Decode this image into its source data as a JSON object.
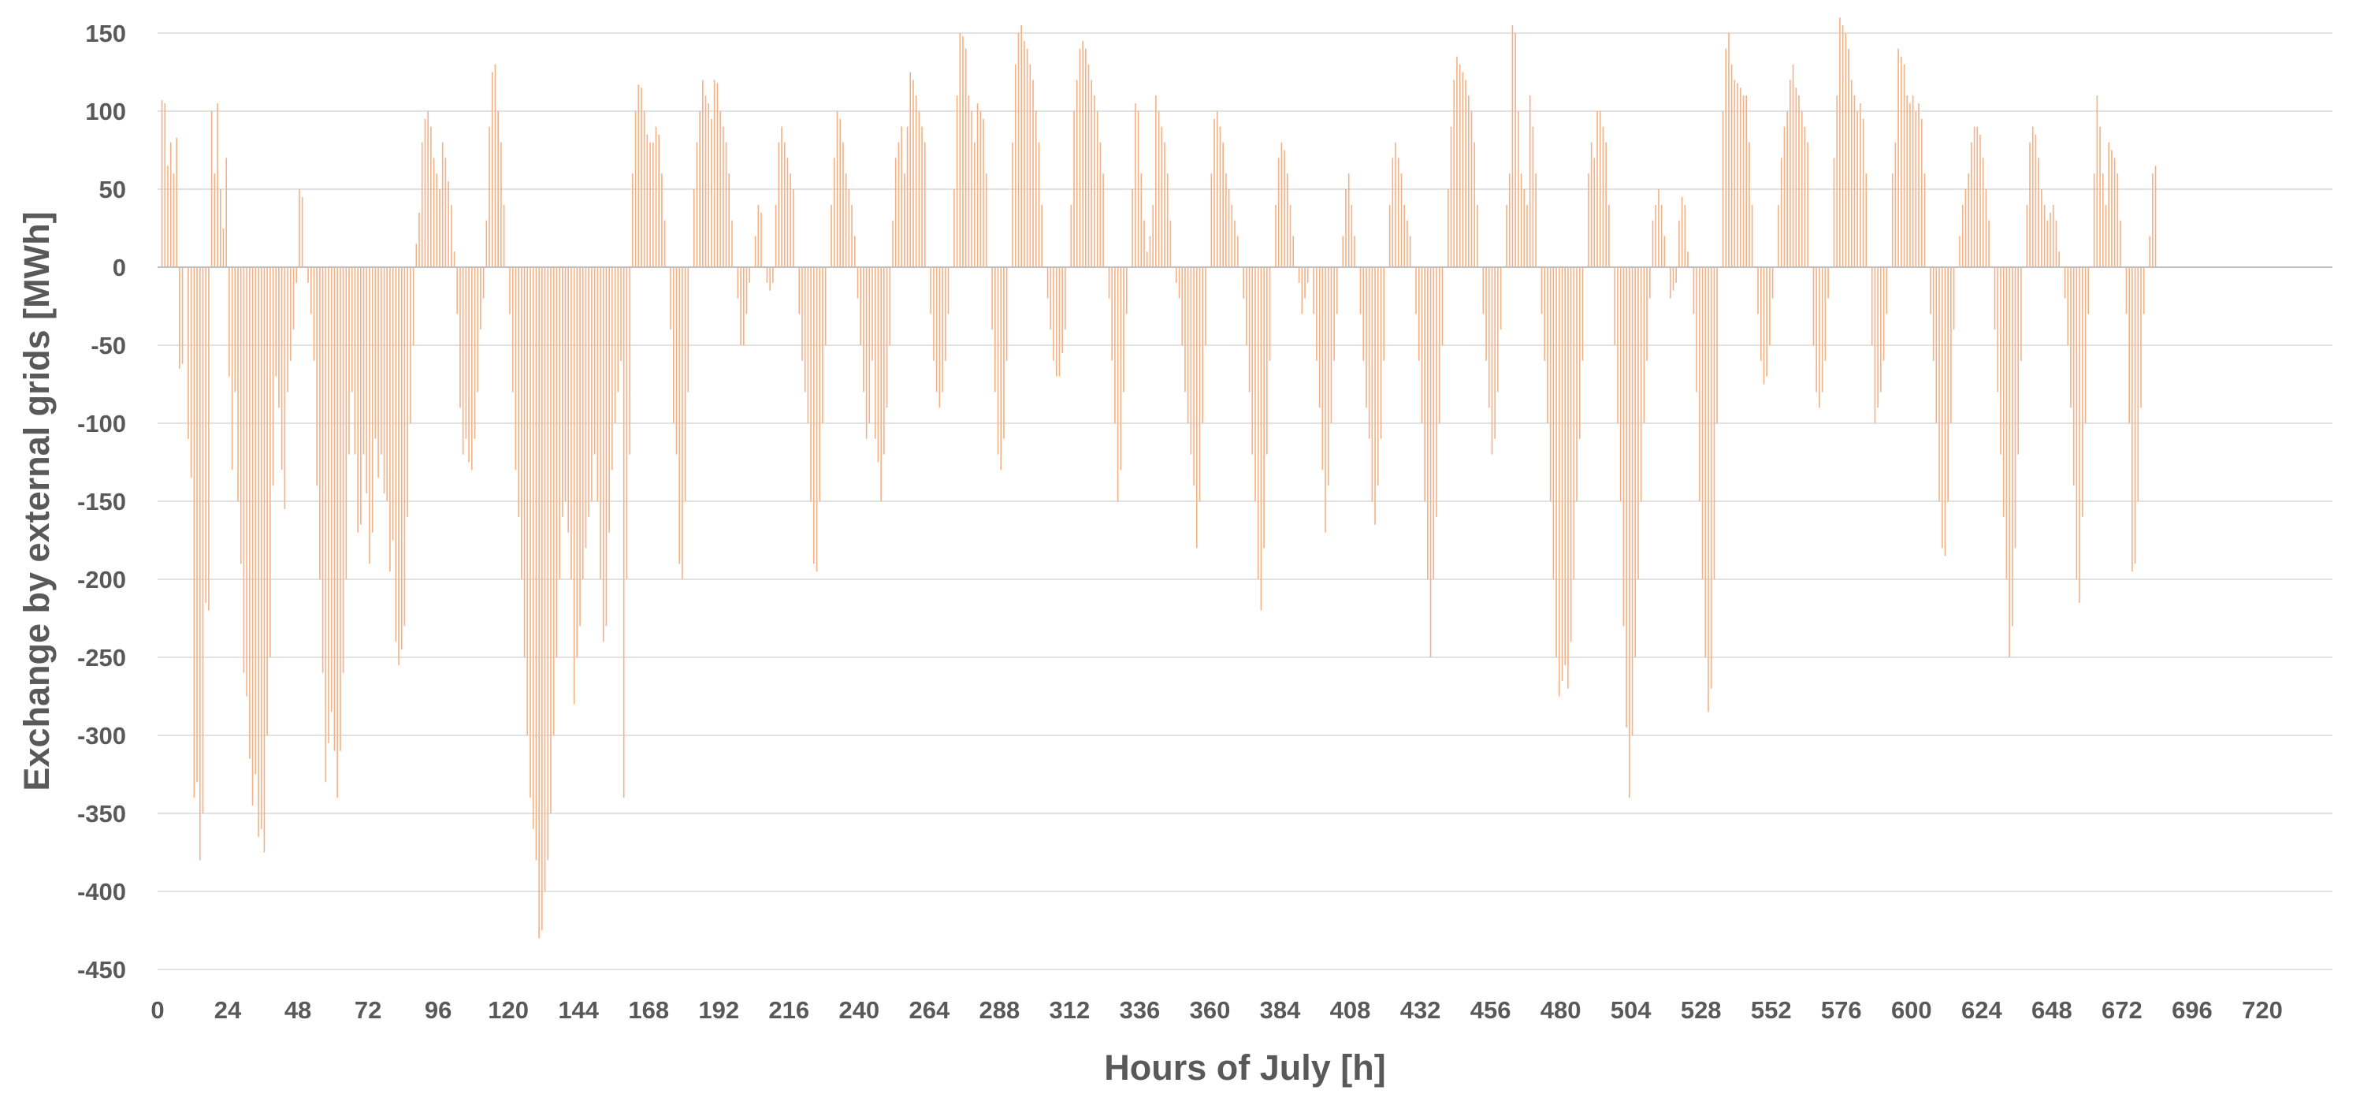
{
  "chart_data": {
    "type": "bar",
    "title": "",
    "xlabel": "Hours of July [h]",
    "ylabel": "Exchange by external grids [MWh]",
    "ylim": [
      -450,
      150
    ],
    "xlim": [
      0,
      744
    ],
    "grid": "horizontal",
    "legend": "none",
    "bar_color": "#f4b183",
    "zero_line_color": "#bfbfbf",
    "grid_color": "#d9d9d9",
    "yticks": [
      150,
      100,
      50,
      0,
      -50,
      -100,
      -150,
      -200,
      -250,
      -300,
      -350,
      -400,
      -450
    ],
    "xticks": [
      0,
      24,
      48,
      72,
      96,
      120,
      144,
      168,
      192,
      216,
      240,
      264,
      288,
      312,
      336,
      360,
      384,
      408,
      432,
      456,
      480,
      504,
      528,
      552,
      576,
      600,
      624,
      648,
      672,
      696,
      720
    ],
    "series": [
      {
        "values": [
          0,
          107,
          105,
          65,
          80,
          60,
          83,
          -65,
          -62,
          0,
          -110,
          -135,
          -340,
          -330,
          -380,
          -350,
          -215,
          -220,
          100,
          60,
          105,
          50,
          25,
          70,
          -70,
          -130,
          -80,
          -150,
          -190,
          -260,
          -275,
          -315,
          -345,
          -325,
          -365,
          -360,
          -375,
          -300,
          -250,
          -140,
          -70,
          -90,
          -130,
          -155,
          -80,
          -60,
          -40,
          -10,
          50,
          45,
          0,
          -10,
          -30,
          -60,
          -140,
          -200,
          -260,
          -330,
          -305,
          -285,
          -310,
          -340,
          -310,
          -260,
          -200,
          -120,
          -80,
          -120,
          -170,
          -165,
          -120,
          -145,
          -190,
          -170,
          -110,
          -135,
          -120,
          -145,
          -150,
          -195,
          -175,
          -240,
          -255,
          -245,
          -230,
          -160,
          -100,
          -50,
          15,
          35,
          80,
          95,
          100,
          90,
          70,
          60,
          50,
          80,
          70,
          55,
          40,
          10,
          -30,
          -90,
          -120,
          -110,
          -125,
          -130,
          -110,
          -80,
          -40,
          -20,
          30,
          90,
          125,
          130,
          100,
          80,
          40,
          0,
          -30,
          -80,
          -130,
          -160,
          -200,
          -250,
          -300,
          -340,
          -360,
          -380,
          -430,
          -425,
          -400,
          -380,
          -350,
          -300,
          -250,
          -200,
          -160,
          -150,
          -170,
          -200,
          -280,
          -250,
          -230,
          -200,
          -180,
          -160,
          -150,
          -120,
          -150,
          -200,
          -240,
          -230,
          -170,
          -130,
          -100,
          -80,
          -60,
          -340,
          -200,
          -120,
          60,
          100,
          117,
          115,
          100,
          85,
          80,
          80,
          90,
          85,
          60,
          30,
          0,
          -40,
          -100,
          -120,
          -190,
          -200,
          -150,
          -80,
          0,
          50,
          80,
          100,
          120,
          110,
          105,
          95,
          120,
          118,
          100,
          90,
          80,
          60,
          30,
          0,
          -20,
          -50,
          -50,
          -30,
          -10,
          0,
          20,
          40,
          35,
          0,
          -10,
          -15,
          -10,
          40,
          80,
          90,
          80,
          70,
          60,
          50,
          0,
          -30,
          -60,
          -80,
          -100,
          -150,
          -190,
          -195,
          -150,
          -100,
          -50,
          0,
          40,
          70,
          100,
          95,
          80,
          60,
          50,
          40,
          20,
          -20,
          -50,
          -80,
          -110,
          -100,
          -60,
          -110,
          -125,
          -150,
          -120,
          -90,
          -50,
          30,
          70,
          80,
          90,
          60,
          90,
          125,
          120,
          110,
          100,
          90,
          80,
          0,
          -30,
          -60,
          -80,
          -90,
          -80,
          -60,
          -30,
          0,
          50,
          110,
          150,
          148,
          140,
          110,
          100,
          80,
          105,
          100,
          95,
          60,
          0,
          -40,
          -80,
          -120,
          -130,
          -110,
          -60,
          0,
          80,
          130,
          150,
          155,
          145,
          140,
          130,
          120,
          100,
          80,
          40,
          0,
          -20,
          -40,
          -60,
          -70,
          -70,
          -55,
          -40,
          0,
          40,
          100,
          120,
          140,
          145,
          140,
          130,
          120,
          110,
          100,
          80,
          60,
          0,
          -20,
          -60,
          -100,
          -150,
          -130,
          -80,
          -30,
          0,
          50,
          105,
          100,
          60,
          30,
          10,
          20,
          40,
          110,
          100,
          90,
          80,
          60,
          30,
          0,
          -10,
          -20,
          -50,
          -80,
          -100,
          -120,
          -140,
          -180,
          -150,
          -100,
          -50,
          0,
          60,
          95,
          100,
          90,
          80,
          60,
          50,
          40,
          30,
          20,
          0,
          -20,
          -50,
          -80,
          -120,
          -150,
          -200,
          -220,
          -180,
          -120,
          -60,
          0,
          40,
          70,
          80,
          75,
          60,
          40,
          20,
          0,
          -10,
          -30,
          -20,
          -10,
          0,
          -30,
          -60,
          -90,
          -130,
          -170,
          -140,
          -100,
          -60,
          -30,
          0,
          20,
          50,
          60,
          40,
          20,
          0,
          -30,
          -60,
          -90,
          -110,
          -150,
          -165,
          -140,
          -110,
          -60,
          0,
          40,
          70,
          80,
          70,
          60,
          40,
          30,
          20,
          0,
          -30,
          -60,
          -100,
          -150,
          -200,
          -250,
          -200,
          -160,
          -100,
          -50,
          0,
          50,
          90,
          120,
          135,
          130,
          125,
          120,
          110,
          100,
          80,
          40,
          0,
          -30,
          -60,
          -90,
          -120,
          -110,
          -80,
          -40,
          0,
          40,
          60,
          155,
          150,
          100,
          60,
          50,
          40,
          110,
          90,
          60,
          0,
          -30,
          -60,
          -100,
          -150,
          -200,
          -250,
          -275,
          -265,
          -255,
          -270,
          -240,
          -200,
          -150,
          -110,
          -60,
          0,
          60,
          80,
          70,
          100,
          100,
          90,
          80,
          40,
          0,
          -50,
          -100,
          -150,
          -230,
          -295,
          -340,
          -300,
          -250,
          -200,
          -150,
          -100,
          -60,
          -20,
          30,
          40,
          50,
          40,
          20,
          0,
          -20,
          -15,
          -10,
          30,
          45,
          40,
          10,
          0,
          -30,
          -80,
          -150,
          -200,
          -250,
          -285,
          -270,
          -200,
          -100,
          0,
          100,
          140,
          150,
          130,
          120,
          118,
          115,
          110,
          110,
          80,
          40,
          0,
          -30,
          -60,
          -75,
          -70,
          -50,
          -20,
          0,
          40,
          70,
          90,
          100,
          120,
          130,
          115,
          110,
          100,
          90,
          80,
          0,
          -50,
          -80,
          -90,
          -80,
          -60,
          -20,
          0,
          70,
          110,
          160,
          155,
          150,
          140,
          120,
          110,
          100,
          105,
          95,
          60,
          0,
          -50,
          -100,
          -90,
          -80,
          -60,
          -30,
          0,
          60,
          80,
          140,
          135,
          130,
          110,
          105,
          110,
          100,
          105,
          95,
          60,
          0,
          -30,
          -60,
          -100,
          -150,
          -180,
          -185,
          -150,
          -100,
          -40,
          0,
          20,
          40,
          50,
          60,
          80,
          90,
          90,
          85,
          70,
          50,
          30,
          0,
          -40,
          -80,
          -120,
          -160,
          -200,
          -250,
          -230,
          -180,
          -120,
          -60,
          0,
          40,
          80,
          90,
          85,
          70,
          50,
          40,
          30,
          35,
          40,
          30,
          10,
          0,
          -20,
          -50,
          -90,
          -140,
          -200,
          -215,
          -160,
          -100,
          -30,
          0,
          60,
          110,
          90,
          60,
          40,
          80,
          75,
          70,
          60,
          30,
          0,
          -30,
          -100,
          -195,
          -190,
          -150,
          -90,
          -30,
          0,
          20,
          60,
          65
        ]
      }
    ]
  }
}
